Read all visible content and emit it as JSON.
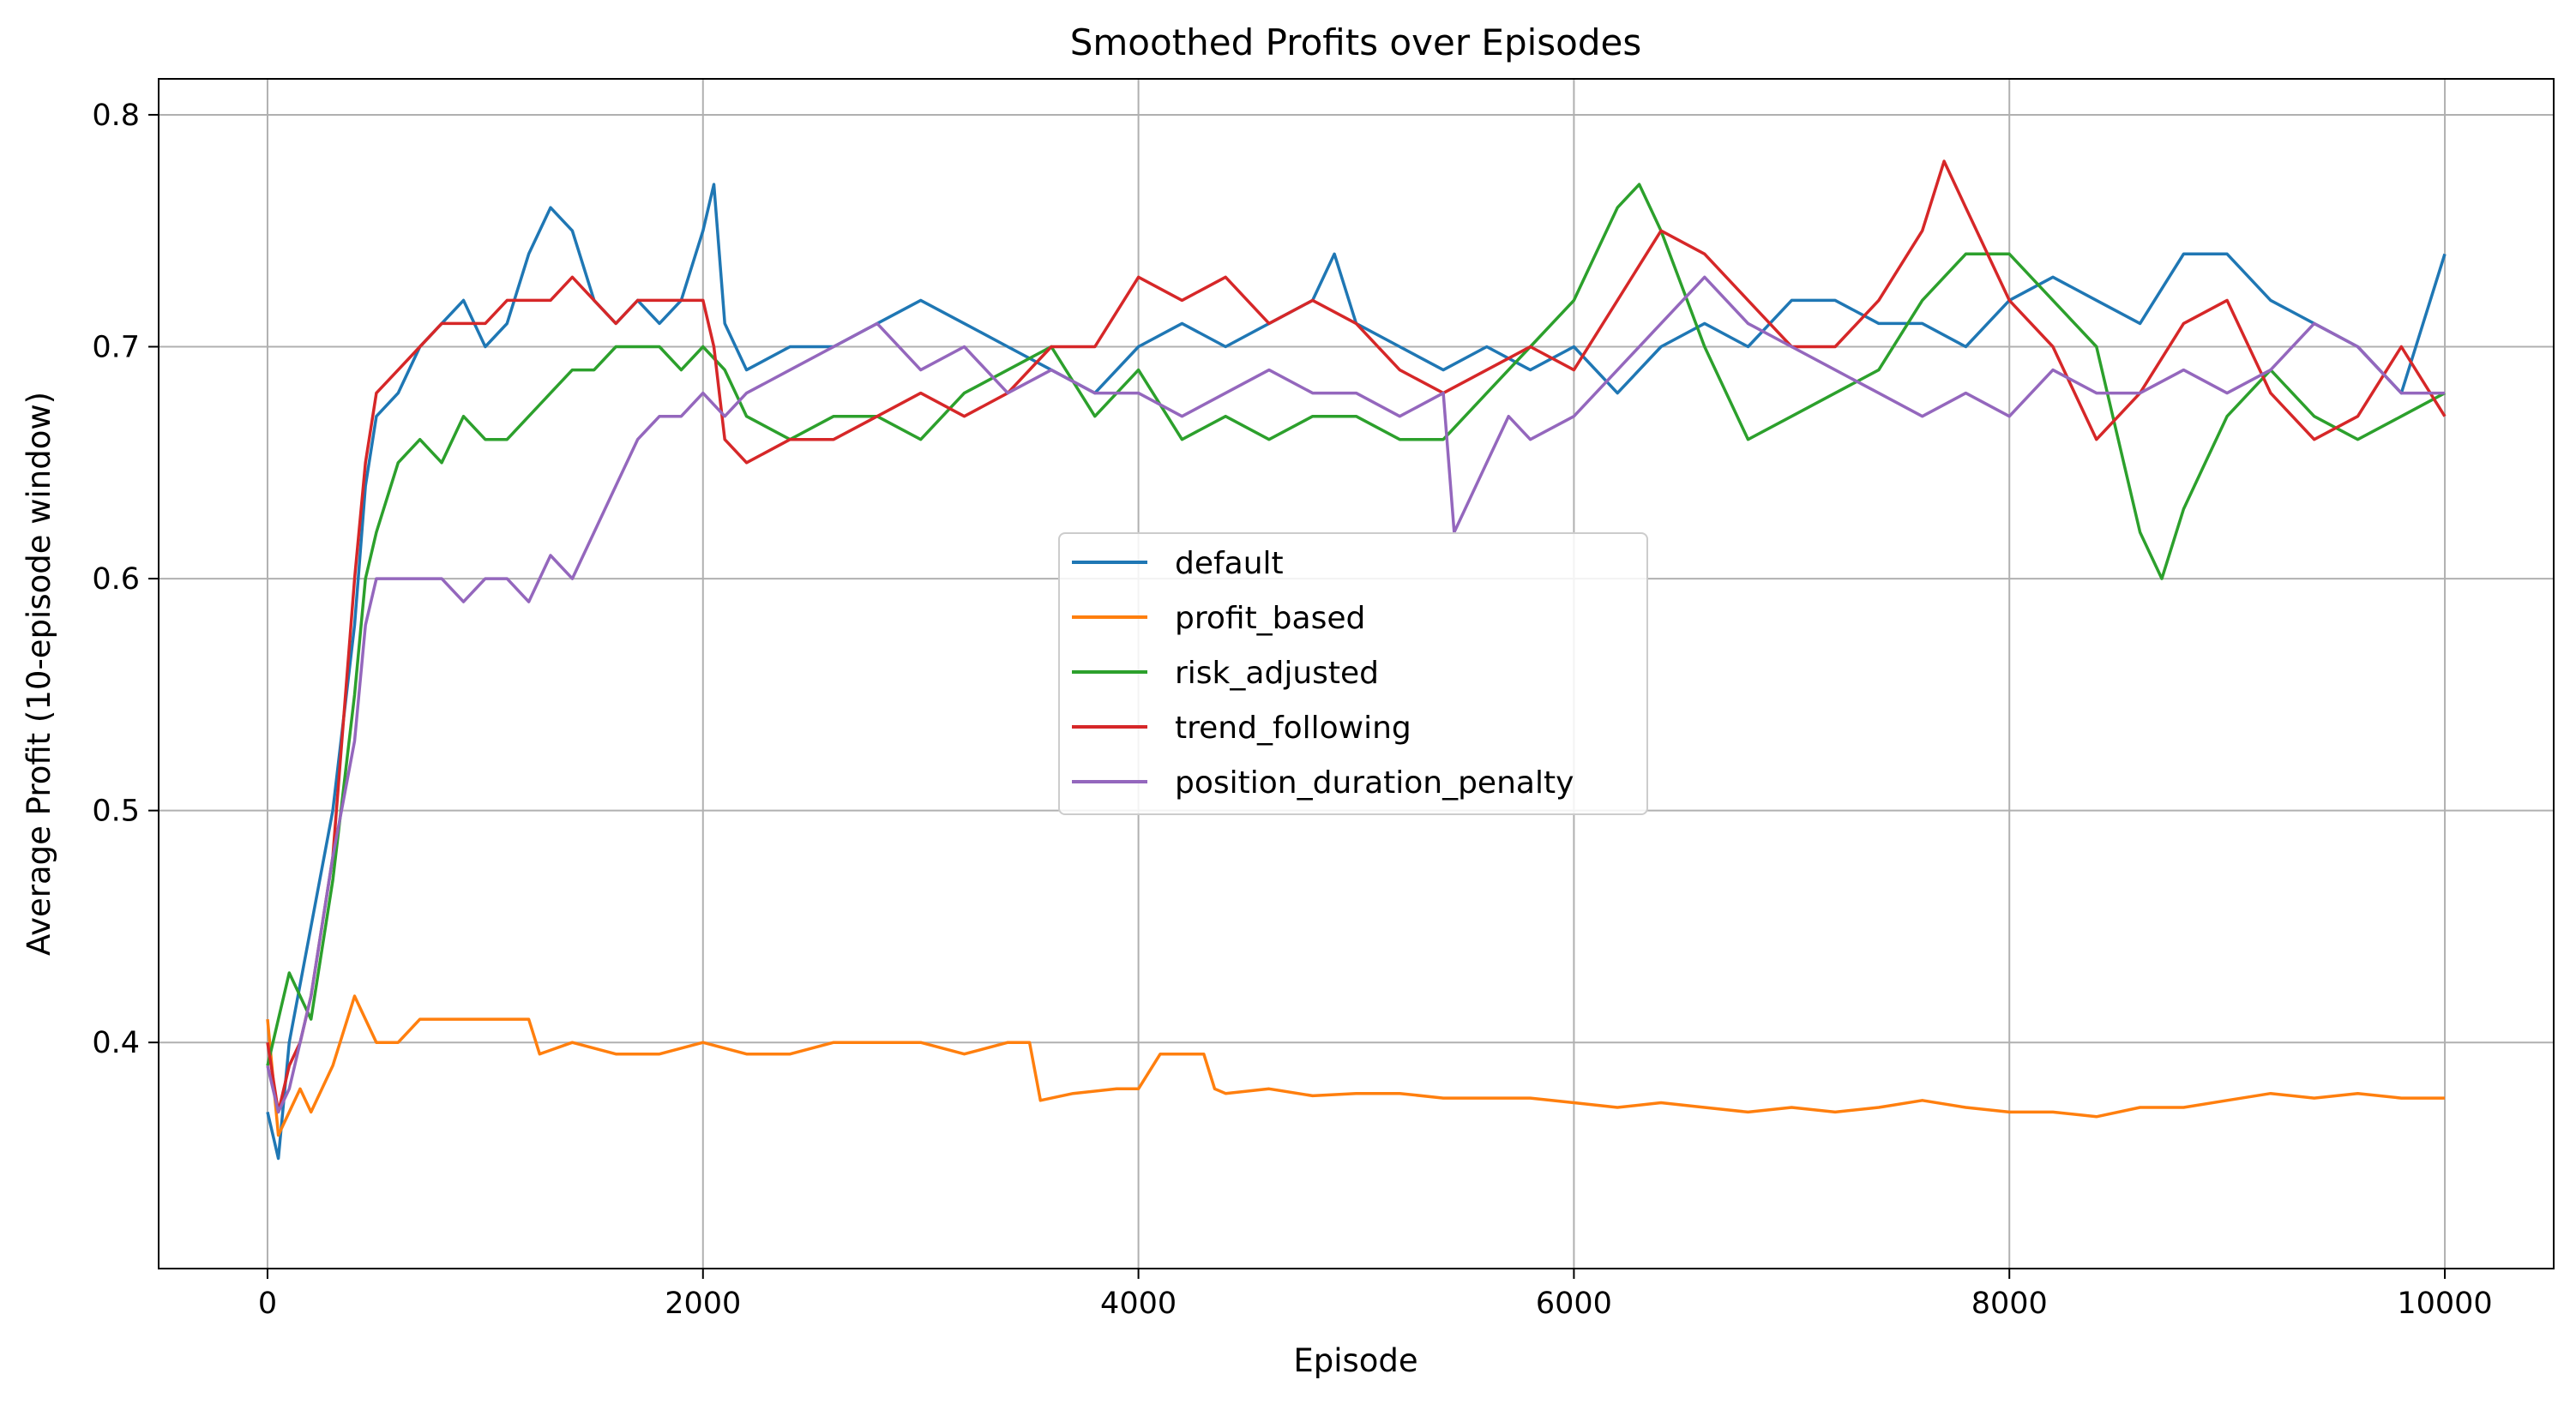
{
  "chart_data": {
    "type": "line",
    "title": "Smoothed Profits over Episodes",
    "xlabel": "Episode",
    "ylabel": "Average Profit (10-episode window)",
    "xlim": [
      -500,
      10500
    ],
    "ylim": [
      0.3025,
      0.8155
    ],
    "xticks": [
      0,
      2000,
      4000,
      6000,
      8000,
      10000
    ],
    "xtick_labels": [
      "0",
      "2000",
      "4000",
      "6000",
      "8000",
      "10000"
    ],
    "yticks": [
      0.4,
      0.5,
      0.6,
      0.7,
      0.8
    ],
    "ytick_labels": [
      "0.4",
      "0.5",
      "0.6",
      "0.7",
      "0.8"
    ],
    "grid": true,
    "legend_position": "center",
    "series": [
      {
        "name": "default",
        "color": "#1f77b4",
        "x": [
          0,
          50,
          100,
          200,
          300,
          400,
          450,
          500,
          600,
          700,
          800,
          900,
          1000,
          1100,
          1200,
          1300,
          1400,
          1500,
          1600,
          1700,
          1800,
          1900,
          2000,
          2050,
          2100,
          2200,
          2400,
          2600,
          2800,
          3000,
          3200,
          3400,
          3600,
          3800,
          4000,
          4200,
          4400,
          4600,
          4800,
          4900,
          5000,
          5200,
          5400,
          5600,
          5800,
          6000,
          6200,
          6400,
          6600,
          6800,
          7000,
          7200,
          7400,
          7600,
          7800,
          8000,
          8200,
          8400,
          8600,
          8800,
          9000,
          9200,
          9400,
          9600,
          9800,
          10000
        ],
        "values": [
          0.37,
          0.35,
          0.4,
          0.45,
          0.5,
          0.58,
          0.64,
          0.67,
          0.68,
          0.7,
          0.71,
          0.72,
          0.7,
          0.71,
          0.74,
          0.76,
          0.75,
          0.72,
          0.71,
          0.72,
          0.71,
          0.72,
          0.75,
          0.77,
          0.71,
          0.69,
          0.7,
          0.7,
          0.71,
          0.72,
          0.71,
          0.7,
          0.69,
          0.68,
          0.7,
          0.71,
          0.7,
          0.71,
          0.72,
          0.74,
          0.71,
          0.7,
          0.69,
          0.7,
          0.69,
          0.7,
          0.68,
          0.7,
          0.71,
          0.7,
          0.72,
          0.72,
          0.71,
          0.71,
          0.7,
          0.72,
          0.73,
          0.72,
          0.71,
          0.74,
          0.74,
          0.72,
          0.71,
          0.7,
          0.68,
          0.74
        ]
      },
      {
        "name": "profit_based",
        "color": "#ff7f0e",
        "x": [
          0,
          50,
          100,
          150,
          200,
          300,
          400,
          500,
          600,
          700,
          800,
          900,
          1000,
          1100,
          1200,
          1250,
          1400,
          1600,
          1800,
          2000,
          2200,
          2400,
          2600,
          2800,
          3000,
          3200,
          3400,
          3500,
          3550,
          3700,
          3900,
          4000,
          4100,
          4300,
          4350,
          4400,
          4600,
          4800,
          5000,
          5200,
          5400,
          5600,
          5800,
          6000,
          6200,
          6400,
          6600,
          6800,
          7000,
          7200,
          7400,
          7600,
          7800,
          8000,
          8200,
          8400,
          8600,
          8800,
          9000,
          9200,
          9400,
          9600,
          9800,
          10000
        ],
        "values": [
          0.41,
          0.36,
          0.37,
          0.38,
          0.37,
          0.39,
          0.42,
          0.4,
          0.4,
          0.41,
          0.41,
          0.41,
          0.41,
          0.41,
          0.41,
          0.395,
          0.4,
          0.395,
          0.395,
          0.4,
          0.395,
          0.395,
          0.4,
          0.4,
          0.4,
          0.395,
          0.4,
          0.4,
          0.375,
          0.378,
          0.38,
          0.38,
          0.395,
          0.395,
          0.38,
          0.378,
          0.38,
          0.377,
          0.378,
          0.378,
          0.376,
          0.376,
          0.376,
          0.374,
          0.372,
          0.374,
          0.372,
          0.37,
          0.372,
          0.37,
          0.372,
          0.375,
          0.372,
          0.37,
          0.37,
          0.368,
          0.372,
          0.372,
          0.375,
          0.378,
          0.376,
          0.378,
          0.376,
          0.376
        ]
      },
      {
        "name": "risk_adjusted",
        "color": "#2ca02c",
        "x": [
          0,
          50,
          100,
          150,
          200,
          300,
          400,
          450,
          500,
          600,
          700,
          800,
          900,
          1000,
          1100,
          1200,
          1300,
          1400,
          1500,
          1600,
          1700,
          1800,
          1900,
          2000,
          2100,
          2200,
          2400,
          2600,
          2800,
          3000,
          3200,
          3400,
          3600,
          3800,
          4000,
          4200,
          4400,
          4600,
          4800,
          5000,
          5200,
          5400,
          5600,
          5800,
          6000,
          6100,
          6200,
          6300,
          6400,
          6600,
          6800,
          7000,
          7200,
          7400,
          7600,
          7800,
          8000,
          8200,
          8400,
          8500,
          8600,
          8700,
          8800,
          8900,
          9000,
          9200,
          9400,
          9600,
          9800,
          10000
        ],
        "values": [
          0.39,
          0.41,
          0.43,
          0.42,
          0.41,
          0.47,
          0.55,
          0.6,
          0.62,
          0.65,
          0.66,
          0.65,
          0.67,
          0.66,
          0.66,
          0.67,
          0.68,
          0.69,
          0.69,
          0.7,
          0.7,
          0.7,
          0.69,
          0.7,
          0.69,
          0.67,
          0.66,
          0.67,
          0.67,
          0.66,
          0.68,
          0.69,
          0.7,
          0.67,
          0.69,
          0.66,
          0.67,
          0.66,
          0.67,
          0.67,
          0.66,
          0.66,
          0.68,
          0.7,
          0.72,
          0.74,
          0.76,
          0.77,
          0.75,
          0.7,
          0.66,
          0.67,
          0.68,
          0.69,
          0.72,
          0.74,
          0.74,
          0.72,
          0.7,
          0.66,
          0.62,
          0.6,
          0.63,
          0.65,
          0.67,
          0.69,
          0.67,
          0.66,
          0.67,
          0.68
        ]
      },
      {
        "name": "trend_following",
        "color": "#d62728",
        "x": [
          0,
          50,
          100,
          150,
          200,
          300,
          400,
          450,
          500,
          600,
          700,
          800,
          900,
          1000,
          1100,
          1200,
          1300,
          1400,
          1500,
          1600,
          1700,
          1800,
          1900,
          2000,
          2050,
          2100,
          2200,
          2400,
          2600,
          2800,
          3000,
          3200,
          3400,
          3600,
          3800,
          4000,
          4200,
          4400,
          4600,
          4800,
          5000,
          5200,
          5400,
          5600,
          5800,
          6000,
          6200,
          6400,
          6600,
          6800,
          7000,
          7200,
          7400,
          7600,
          7700,
          7800,
          8000,
          8200,
          8400,
          8600,
          8800,
          9000,
          9200,
          9400,
          9600,
          9800,
          10000
        ],
        "values": [
          0.4,
          0.37,
          0.39,
          0.4,
          0.42,
          0.48,
          0.6,
          0.65,
          0.68,
          0.69,
          0.7,
          0.71,
          0.71,
          0.71,
          0.72,
          0.72,
          0.72,
          0.73,
          0.72,
          0.71,
          0.72,
          0.72,
          0.72,
          0.72,
          0.7,
          0.66,
          0.65,
          0.66,
          0.66,
          0.67,
          0.68,
          0.67,
          0.68,
          0.7,
          0.7,
          0.73,
          0.72,
          0.73,
          0.71,
          0.72,
          0.71,
          0.69,
          0.68,
          0.69,
          0.7,
          0.69,
          0.72,
          0.75,
          0.74,
          0.72,
          0.7,
          0.7,
          0.72,
          0.75,
          0.78,
          0.76,
          0.72,
          0.7,
          0.66,
          0.68,
          0.71,
          0.72,
          0.68,
          0.66,
          0.67,
          0.7,
          0.67
        ]
      },
      {
        "name": "position_duration_penalty",
        "color": "#9467bd",
        "x": [
          0,
          50,
          100,
          150,
          200,
          300,
          400,
          450,
          500,
          600,
          700,
          800,
          900,
          1000,
          1100,
          1200,
          1300,
          1400,
          1500,
          1600,
          1700,
          1800,
          1900,
          2000,
          2100,
          2200,
          2400,
          2600,
          2800,
          3000,
          3200,
          3400,
          3600,
          3800,
          4000,
          4200,
          4400,
          4600,
          4800,
          5000,
          5200,
          5400,
          5450,
          5500,
          5600,
          5700,
          5800,
          6000,
          6200,
          6400,
          6600,
          6800,
          7000,
          7200,
          7400,
          7600,
          7800,
          8000,
          8200,
          8400,
          8600,
          8800,
          9000,
          9200,
          9400,
          9600,
          9800,
          10000
        ],
        "values": [
          0.39,
          0.37,
          0.38,
          0.4,
          0.42,
          0.48,
          0.53,
          0.58,
          0.6,
          0.6,
          0.6,
          0.6,
          0.59,
          0.6,
          0.6,
          0.59,
          0.61,
          0.6,
          0.62,
          0.64,
          0.66,
          0.67,
          0.67,
          0.68,
          0.67,
          0.68,
          0.69,
          0.7,
          0.71,
          0.69,
          0.7,
          0.68,
          0.69,
          0.68,
          0.68,
          0.67,
          0.68,
          0.69,
          0.68,
          0.68,
          0.67,
          0.68,
          0.62,
          0.63,
          0.65,
          0.67,
          0.66,
          0.67,
          0.69,
          0.71,
          0.73,
          0.71,
          0.7,
          0.69,
          0.68,
          0.67,
          0.68,
          0.67,
          0.69,
          0.68,
          0.68,
          0.69,
          0.68,
          0.69,
          0.71,
          0.7,
          0.68,
          0.68
        ]
      }
    ]
  }
}
